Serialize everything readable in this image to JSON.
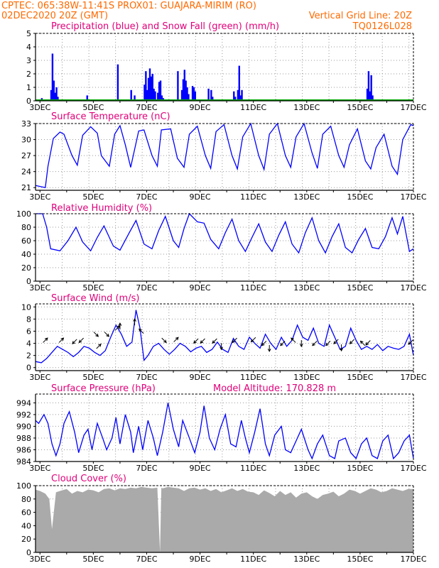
{
  "header": {
    "line1": "CPTEC:   065:38W-11:41S   PROX01: GUAJARA-MIRIM (RO)",
    "line2_left": "02DEC2020 20Z (GMT)",
    "line2_right": "Vertical Grid Line: 20Z",
    "code": "TQ0126L028"
  },
  "colors": {
    "series": "#0000ff",
    "snow": "#00aa00",
    "arrows": "#000000",
    "title": "#e0007a",
    "header": "#ff6a00",
    "cloud": "#aaaaaa",
    "grid": "#999999"
  },
  "x_axis": {
    "start_day": 2.833,
    "end_day": 17.0,
    "day_labels": [
      "3DEC",
      "5DEC",
      "7DEC",
      "9DEC",
      "11DEC",
      "13DEC",
      "15DEC",
      "17DEC"
    ]
  },
  "chart_data": [
    {
      "type": "bar",
      "title": "Precipitation (blue) and Snow Fall (green) (mm/h)",
      "ylim": [
        0,
        5
      ],
      "yticks": [
        "0",
        "1",
        "2",
        "3",
        "4",
        "5"
      ],
      "series": [
        {
          "name": "Precipitation",
          "color": "#0000ff",
          "x": [
            3.07,
            3.27,
            3.42,
            3.47,
            3.52,
            3.57,
            3.62,
            3.67,
            4.77,
            5.92,
            6.42,
            6.55,
            6.92,
            6.97,
            7.02,
            7.07,
            7.12,
            7.17,
            7.22,
            7.27,
            7.32,
            7.42,
            7.47,
            7.52,
            7.57,
            7.62,
            8.17,
            8.32,
            8.37,
            8.42,
            8.47,
            8.52,
            8.57,
            8.72,
            8.77,
            8.82,
            9.32,
            9.42,
            9.47,
            10.27,
            10.32,
            10.42,
            10.47,
            10.52,
            10.57,
            15.27,
            15.32,
            15.37,
            15.42,
            15.47
          ],
          "values": [
            0.2,
            0.1,
            0.8,
            3.5,
            1.5,
            0.6,
            1.0,
            0.3,
            0.4,
            2.7,
            0.8,
            0.4,
            1.2,
            2.2,
            0.8,
            1.7,
            2.4,
            1.8,
            2.0,
            0.9,
            0.7,
            0.6,
            1.4,
            1.5,
            0.4,
            0.2,
            2.2,
            0.8,
            1.6,
            2.3,
            1.5,
            1.0,
            0.5,
            1.1,
            1.0,
            0.7,
            0.9,
            0.8,
            0.3,
            0.7,
            0.3,
            0.8,
            2.6,
            0.4,
            0.8,
            0.9,
            2.2,
            0.7,
            1.9,
            0.4
          ]
        },
        {
          "name": "Snow Fall",
          "color": "#00aa00",
          "x": [
            2.833,
            17.0
          ],
          "values": [
            0,
            0
          ]
        }
      ]
    },
    {
      "type": "line",
      "title": "Surface Temperature (nC)",
      "ylim": [
        20.5,
        33
      ],
      "yticks": [
        "21",
        "24",
        "27",
        "30",
        "33"
      ],
      "x": [
        2.833,
        3.2,
        3.3,
        3.5,
        3.75,
        3.9,
        4.2,
        4.4,
        4.6,
        4.9,
        5.15,
        5.3,
        5.6,
        5.8,
        6.0,
        6.2,
        6.4,
        6.7,
        6.9,
        7.2,
        7.4,
        7.55,
        7.9,
        8.15,
        8.4,
        8.6,
        8.9,
        9.2,
        9.4,
        9.6,
        9.9,
        10.2,
        10.4,
        10.6,
        10.9,
        11.2,
        11.4,
        11.6,
        11.9,
        12.2,
        12.4,
        12.6,
        12.9,
        13.2,
        13.4,
        13.6,
        13.9,
        14.2,
        14.4,
        14.6,
        14.9,
        15.2,
        15.4,
        15.6,
        15.9,
        16.2,
        16.4,
        16.6,
        16.9,
        17.0
      ],
      "values": [
        21.4,
        21.0,
        25.0,
        30.2,
        31.4,
        31.0,
        27.0,
        25.2,
        30.8,
        32.4,
        31.2,
        27.0,
        25.0,
        31.0,
        32.6,
        29.0,
        24.8,
        31.6,
        31.8,
        27.0,
        25.0,
        31.8,
        32.0,
        26.5,
        24.8,
        31.0,
        32.5,
        27.0,
        24.6,
        31.5,
        32.8,
        27.0,
        24.5,
        30.5,
        33.0,
        27.0,
        24.4,
        31.0,
        33.0,
        27.0,
        24.8,
        30.5,
        33.0,
        27.5,
        24.6,
        31.0,
        32.5,
        27.0,
        24.8,
        29.0,
        32.0,
        26.0,
        24.5,
        28.5,
        31.0,
        25.0,
        23.5,
        30.0,
        32.8,
        32.6
      ]
    },
    {
      "type": "line",
      "title": "Relative Humidity (%)",
      "ylim": [
        0,
        100
      ],
      "yticks": [
        "0",
        "20",
        "40",
        "60",
        "80",
        "100"
      ],
      "x": [
        2.833,
        3.1,
        3.25,
        3.4,
        3.75,
        4.05,
        4.35,
        4.6,
        4.9,
        5.15,
        5.4,
        5.75,
        6.0,
        6.35,
        6.6,
        6.9,
        7.2,
        7.45,
        7.7,
        8.0,
        8.2,
        8.4,
        8.6,
        8.9,
        9.15,
        9.4,
        9.7,
        9.95,
        10.2,
        10.45,
        10.7,
        10.95,
        11.2,
        11.45,
        11.7,
        11.95,
        12.2,
        12.45,
        12.7,
        12.95,
        13.2,
        13.45,
        13.7,
        13.95,
        14.2,
        14.45,
        14.7,
        14.95,
        15.2,
        15.45,
        15.7,
        15.95,
        16.2,
        16.4,
        16.6,
        16.85,
        17.0
      ],
      "values": [
        100,
        100,
        80,
        48,
        45,
        60,
        80,
        58,
        45,
        65,
        82,
        52,
        46,
        72,
        90,
        55,
        48,
        75,
        96,
        60,
        50,
        78,
        100,
        88,
        86,
        62,
        48,
        72,
        92,
        60,
        44,
        65,
        85,
        58,
        44,
        68,
        88,
        55,
        42,
        72,
        94,
        60,
        42,
        66,
        85,
        50,
        42,
        62,
        78,
        50,
        48,
        66,
        94,
        70,
        96,
        44,
        48
      ]
    },
    {
      "type": "line",
      "title": "Surface Wind (m/s)",
      "ylim": [
        -0.5,
        10.5
      ],
      "yticks": [
        "0",
        "2",
        "4",
        "6",
        "8",
        "10"
      ],
      "x": [
        2.833,
        3.05,
        3.25,
        3.45,
        3.65,
        3.85,
        4.05,
        4.25,
        4.45,
        4.65,
        4.85,
        5.05,
        5.25,
        5.45,
        5.65,
        5.85,
        6.05,
        6.25,
        6.45,
        6.6,
        6.75,
        6.9,
        7.05,
        7.25,
        7.45,
        7.65,
        7.85,
        8.05,
        8.25,
        8.45,
        8.65,
        8.85,
        9.05,
        9.25,
        9.45,
        9.65,
        9.85,
        10.05,
        10.25,
        10.45,
        10.65,
        10.85,
        11.05,
        11.25,
        11.45,
        11.65,
        11.85,
        12.05,
        12.25,
        12.45,
        12.65,
        12.85,
        13.05,
        13.25,
        13.45,
        13.65,
        13.85,
        14.05,
        14.25,
        14.45,
        14.65,
        14.85,
        15.05,
        15.25,
        15.45,
        15.65,
        15.85,
        16.05,
        16.25,
        16.45,
        16.65,
        16.85,
        17.0
      ],
      "values": [
        1.0,
        0.8,
        1.5,
        2.5,
        3.5,
        3.0,
        2.5,
        1.8,
        2.5,
        3.5,
        3.2,
        2.5,
        2.0,
        2.8,
        5.0,
        7.0,
        5.5,
        3.5,
        4.2,
        9.5,
        6.5,
        1.2,
        2.0,
        3.5,
        4.0,
        3.0,
        2.2,
        3.0,
        4.0,
        3.5,
        2.6,
        3.2,
        3.5,
        2.5,
        3.0,
        4.2,
        3.0,
        2.5,
        4.8,
        3.5,
        3.0,
        5.0,
        4.0,
        3.2,
        5.5,
        4.0,
        3.0,
        5.0,
        3.5,
        4.5,
        7.0,
        5.0,
        4.5,
        6.5,
        4.0,
        3.5,
        7.0,
        5.0,
        3.0,
        3.5,
        6.5,
        4.5,
        3.0,
        3.5,
        3.0,
        3.8,
        2.8,
        3.5,
        3.2,
        3.0,
        3.5,
        5.5,
        2.0
      ],
      "arrows": [
        {
          "x": 3.2,
          "y": 4.5,
          "dir": "NE"
        },
        {
          "x": 3.8,
          "y": 4.5,
          "dir": "NE"
        },
        {
          "x": 4.3,
          "y": 4.3,
          "dir": "SW"
        },
        {
          "x": 4.55,
          "y": 4.5,
          "dir": "SW"
        },
        {
          "x": 5.1,
          "y": 5.5,
          "dir": "SE"
        },
        {
          "x": 5.2,
          "y": 3.5,
          "dir": "NE"
        },
        {
          "x": 5.5,
          "y": 5.5,
          "dir": "SE"
        },
        {
          "x": 5.9,
          "y": 6.5,
          "dir": "NE"
        },
        {
          "x": 6.0,
          "y": 6.8,
          "dir": "N"
        },
        {
          "x": 6.55,
          "y": 7.5,
          "dir": "N"
        },
        {
          "x": 6.8,
          "y": 6.0,
          "dir": "NW"
        },
        {
          "x": 7.65,
          "y": 4.5,
          "dir": "SE"
        },
        {
          "x": 8.1,
          "y": 4.6,
          "dir": "NE"
        },
        {
          "x": 8.85,
          "y": 4.4,
          "dir": "SW"
        },
        {
          "x": 9.1,
          "y": 4.4,
          "dir": "SW"
        },
        {
          "x": 9.55,
          "y": 4.4,
          "dir": "SW"
        },
        {
          "x": 9.8,
          "y": 3.5,
          "dir": "S"
        },
        {
          "x": 10.3,
          "y": 4.5,
          "dir": "SW"
        },
        {
          "x": 11.0,
          "y": 4.6,
          "dir": "SW"
        },
        {
          "x": 11.4,
          "y": 4.0,
          "dir": "SW"
        },
        {
          "x": 11.6,
          "y": 3.2,
          "dir": "S"
        },
        {
          "x": 12.1,
          "y": 4.0,
          "dir": "SW"
        },
        {
          "x": 12.5,
          "y": 4.5,
          "dir": "NW"
        },
        {
          "x": 12.8,
          "y": 4.0,
          "dir": "S"
        },
        {
          "x": 13.3,
          "y": 4.0,
          "dir": "SW"
        },
        {
          "x": 13.8,
          "y": 4.0,
          "dir": "SW"
        },
        {
          "x": 14.1,
          "y": 4.3,
          "dir": "SW"
        },
        {
          "x": 14.3,
          "y": 3.3,
          "dir": "S"
        },
        {
          "x": 14.7,
          "y": 4.3,
          "dir": "SW"
        },
        {
          "x": 15.1,
          "y": 4.0,
          "dir": "NW"
        },
        {
          "x": 15.3,
          "y": 4.1,
          "dir": "SW"
        },
        {
          "x": 16.9,
          "y": 4.2,
          "dir": "SW"
        }
      ]
    },
    {
      "type": "line",
      "title": "Surface Pressure (hPa)",
      "annotation": "Model Altitude: 170.828 m",
      "ylim": [
        984,
        995.5
      ],
      "yticks": [
        "984",
        "986",
        "988",
        "990",
        "992",
        "994"
      ],
      "x": [
        2.833,
        2.95,
        3.15,
        3.3,
        3.45,
        3.6,
        3.75,
        3.9,
        4.1,
        4.3,
        4.45,
        4.65,
        4.8,
        4.95,
        5.15,
        5.35,
        5.5,
        5.7,
        5.85,
        6.0,
        6.2,
        6.4,
        6.5,
        6.7,
        6.85,
        7.05,
        7.25,
        7.4,
        7.6,
        7.8,
        8.0,
        8.2,
        8.35,
        8.6,
        8.8,
        9.0,
        9.15,
        9.35,
        9.55,
        9.75,
        9.95,
        10.15,
        10.35,
        10.55,
        10.7,
        10.85,
        11.05,
        11.25,
        11.45,
        11.6,
        11.8,
        12.05,
        12.2,
        12.4,
        12.6,
        12.8,
        13.05,
        13.2,
        13.4,
        13.6,
        13.85,
        14.05,
        14.2,
        14.45,
        14.65,
        14.85,
        15.05,
        15.25,
        15.45,
        15.65,
        15.85,
        16.05,
        16.25,
        16.45,
        16.65,
        16.85,
        17.0
      ],
      "values": [
        991.0,
        990.5,
        992.0,
        990.5,
        987.0,
        985.0,
        987.0,
        990.5,
        992.5,
        989.0,
        985.5,
        988.5,
        989.5,
        986.0,
        990.5,
        988.0,
        986.0,
        988.0,
        991.5,
        987.0,
        992.0,
        989.0,
        985.5,
        990.0,
        986.0,
        991.0,
        988.0,
        985.0,
        989.0,
        994.0,
        989.5,
        986.5,
        991.0,
        988.0,
        985.5,
        989.0,
        993.5,
        988.0,
        986.0,
        989.5,
        992.0,
        987.0,
        986.5,
        991.0,
        988.0,
        985.5,
        989.0,
        993.0,
        987.0,
        985.0,
        988.5,
        990.0,
        986.0,
        985.5,
        987.5,
        989.5,
        986.0,
        984.5,
        987.0,
        988.5,
        985.0,
        984.5,
        987.5,
        988.0,
        985.5,
        984.5,
        987.0,
        988.0,
        985.0,
        984.5,
        987.5,
        988.5,
        984.5,
        985.5,
        987.5,
        988.5,
        984.5
      ]
    },
    {
      "type": "area",
      "title": "Cloud Cover (%)",
      "ylim": [
        0,
        100
      ],
      "yticks": [
        "0",
        "20",
        "40",
        "60",
        "80",
        "100"
      ],
      "x": [
        2.833,
        3.0,
        3.2,
        3.35,
        3.45,
        3.6,
        3.75,
        4.0,
        4.2,
        4.4,
        4.6,
        4.8,
        5.0,
        5.2,
        5.4,
        5.6,
        5.8,
        6.0,
        6.2,
        6.4,
        6.6,
        6.8,
        7.0,
        7.2,
        7.4,
        7.5,
        7.55,
        7.6,
        7.8,
        8.0,
        8.2,
        8.4,
        8.6,
        8.8,
        9.0,
        9.2,
        9.4,
        9.6,
        9.8,
        10.0,
        10.2,
        10.4,
        10.6,
        10.8,
        11.0,
        11.2,
        11.4,
        11.6,
        11.8,
        12.0,
        12.2,
        12.4,
        12.6,
        12.8,
        13.0,
        13.2,
        13.4,
        13.6,
        13.8,
        14.0,
        14.2,
        14.4,
        14.6,
        14.8,
        15.0,
        15.2,
        15.4,
        15.6,
        15.8,
        16.0,
        16.2,
        16.4,
        16.6,
        16.8,
        17.0
      ],
      "values": [
        94,
        92,
        88,
        80,
        35,
        90,
        92,
        95,
        88,
        92,
        90,
        94,
        93,
        90,
        95,
        96,
        93,
        96,
        95,
        97,
        96,
        98,
        97,
        96,
        97,
        0,
        97,
        96,
        98,
        97,
        96,
        92,
        96,
        97,
        94,
        96,
        92,
        95,
        90,
        93,
        96,
        92,
        95,
        91,
        90,
        86,
        93,
        89,
        84,
        92,
        86,
        90,
        82,
        88,
        90,
        84,
        80,
        86,
        88,
        91,
        84,
        88,
        94,
        92,
        88,
        92,
        96,
        94,
        90,
        92,
        96,
        94,
        92,
        95,
        95
      ]
    }
  ]
}
